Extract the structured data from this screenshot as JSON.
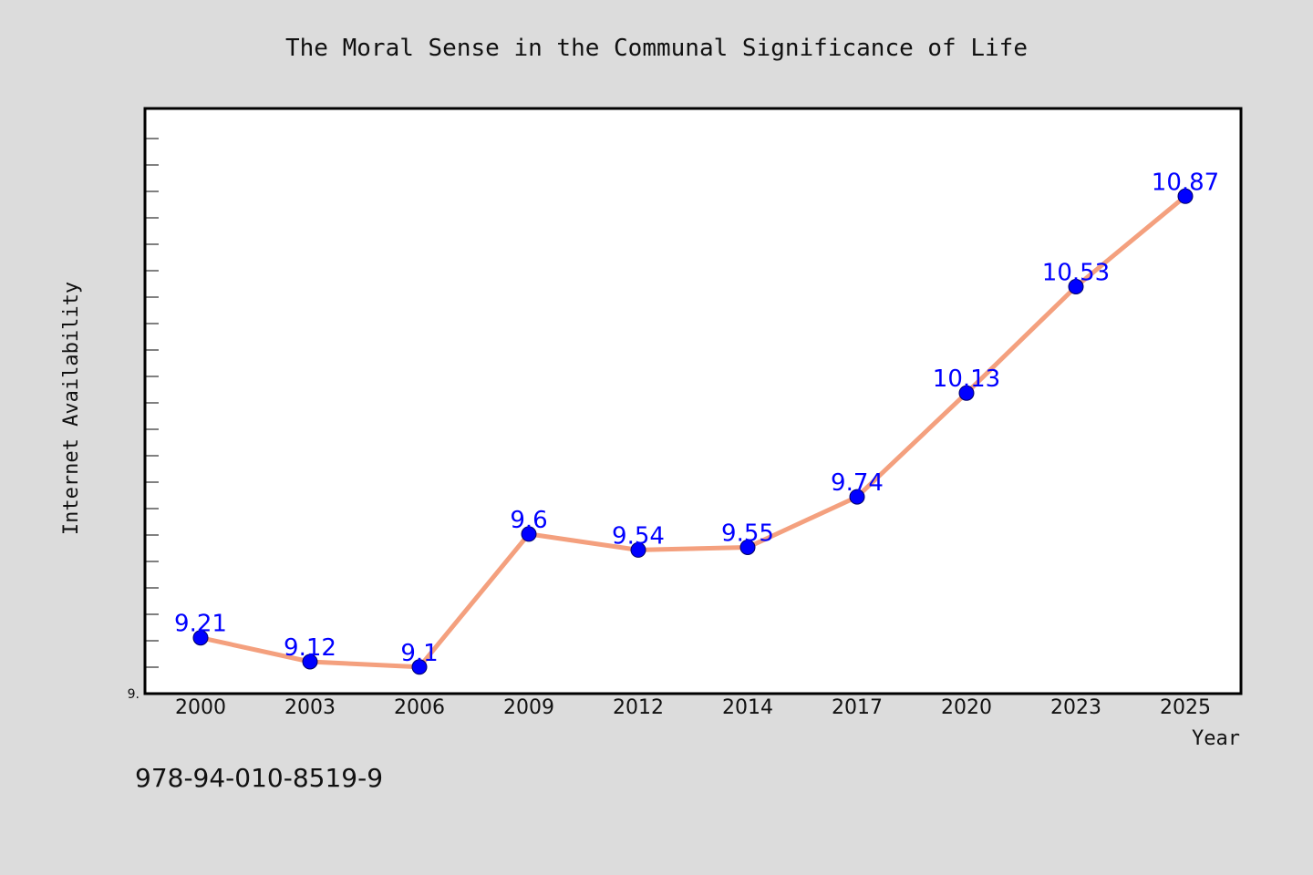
{
  "chart_data": {
    "type": "line",
    "title": "The Moral Sense in the Communal Significance of Life",
    "xlabel": "Year",
    "ylabel": "Internet Availability",
    "categories": [
      "2000",
      "2003",
      "2006",
      "2009",
      "2012",
      "2014",
      "2017",
      "2020",
      "2023",
      "2025"
    ],
    "series": [
      {
        "values": [
          9.21,
          9.12,
          9.1,
          9.6,
          9.54,
          9.55,
          9.74,
          10.13,
          10.53,
          10.87
        ]
      }
    ],
    "data_labels": [
      "9.21",
      "9.12",
      "9.1",
      "9.6",
      "9.54",
      "9.55",
      "9.74",
      "10.13",
      "10.53",
      "10.87"
    ],
    "ytick_label": "9.",
    "ylim": [
      9.0,
      11.2
    ],
    "grid": false,
    "line_color": "#f4a07e",
    "marker_color": "#0000ff",
    "label_color": "#0000ff"
  },
  "footer": {
    "isbn": "978-94-010-8519-9"
  }
}
